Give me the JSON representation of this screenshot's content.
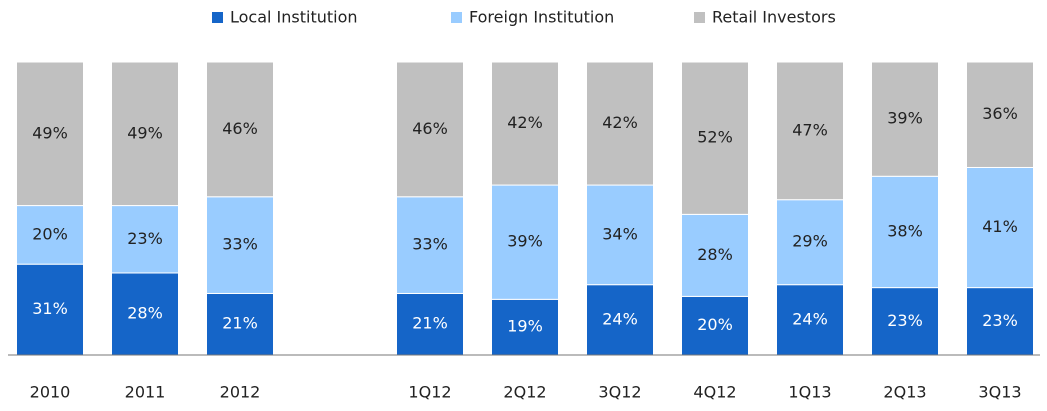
{
  "chart_data": {
    "type": "stacked_bar",
    "categories": [
      "2010",
      "2011",
      "2012",
      null,
      "1Q12",
      "2Q12",
      "3Q12",
      "4Q12",
      "1Q13",
      "2Q13",
      "3Q13"
    ],
    "series": [
      {
        "name": "Local Institution",
        "color": "#1565c8",
        "values": [
          31,
          28,
          21,
          null,
          21,
          19,
          24,
          20,
          24,
          23,
          23
        ],
        "value_labels": [
          "31%",
          "28%",
          "21%",
          null,
          "21%",
          "19%",
          "24%",
          "20%",
          "24%",
          "23%",
          "23%"
        ]
      },
      {
        "name": "Foreign Institution",
        "color": "#99ccff",
        "values": [
          20,
          23,
          33,
          null,
          33,
          39,
          34,
          28,
          29,
          38,
          41
        ],
        "value_labels": [
          "20%",
          "23%",
          "33%",
          null,
          "33%",
          "39%",
          "34%",
          "28%",
          "29%",
          "38%",
          "41%"
        ]
      },
      {
        "name": "Retail Investors",
        "color": "#c0c0c0",
        "values": [
          49,
          49,
          46,
          null,
          46,
          42,
          42,
          52,
          47,
          39,
          36
        ],
        "value_labels": [
          "49%",
          "49%",
          "46%",
          null,
          "46%",
          "42%",
          "42%",
          "52%",
          "47%",
          "39%",
          "36%"
        ]
      }
    ],
    "ylim": [
      0,
      100
    ],
    "legend": "top"
  }
}
